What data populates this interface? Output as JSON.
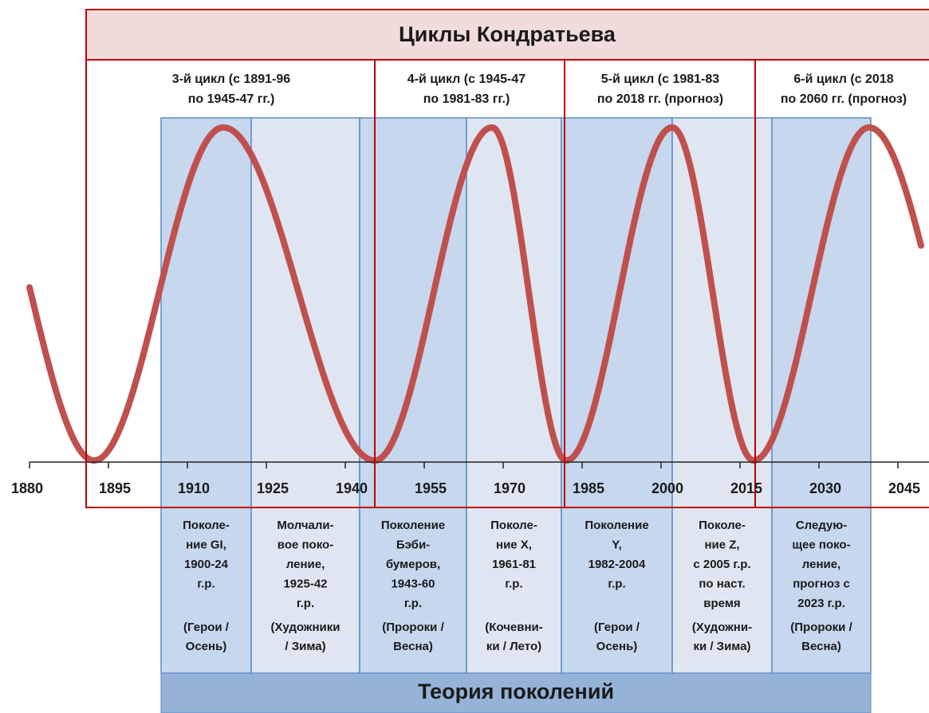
{
  "header": {
    "title": "Циклы Кондратьева"
  },
  "footer": {
    "title": "Теория поколений"
  },
  "cycles": [
    {
      "lines": [
        "3-й цикл (с 1891-96",
        "по 1945-47 гг.)"
      ]
    },
    {
      "lines": [
        "4-й цикл (с 1945-47",
        "по 1981-83 гг.)"
      ]
    },
    {
      "lines": [
        "5-й цикл (с 1981-83",
        "по 2018 гг. (прогноз)"
      ]
    },
    {
      "lines": [
        "6-й цикл (с 2018",
        "по 2060 гг. (прогноз)"
      ]
    }
  ],
  "years": [
    1880,
    1895,
    1910,
    1925,
    1940,
    1955,
    1970,
    1985,
    2000,
    2015,
    2030,
    2045
  ],
  "generations": [
    {
      "lines": [
        "Поколе-",
        "ние GI,",
        "1900-24",
        "г.р."
      ],
      "note": [
        "(Герои /",
        "Осень)"
      ]
    },
    {
      "lines": [
        "Молчали-",
        "вое поко-",
        "ление,",
        "1925-42",
        "г.р."
      ],
      "note": [
        "(Художники",
        "/ Зима)"
      ]
    },
    {
      "lines": [
        "Поколение",
        "Бэби-",
        "бумеров,",
        "1943-60",
        "г.р."
      ],
      "note": [
        "(Пророки /",
        "Весна)"
      ]
    },
    {
      "lines": [
        "Поколе-",
        "ние X,",
        "1961-81",
        "г.р."
      ],
      "note": [
        "(Кочевни-",
        "ки / Лето)"
      ]
    },
    {
      "lines": [
        "Поколение",
        "Y,",
        "1982-2004",
        "г.р."
      ],
      "note": [
        "(Герои /",
        "Осень)"
      ]
    },
    {
      "lines": [
        "Поколе-",
        "ние Z,",
        "с 2005 г.р.",
        "по наст.",
        "время"
      ],
      "note": [
        "(Художни-",
        "ки / Зима)"
      ]
    },
    {
      "lines": [
        "Следую-",
        "щее поко-",
        "ление,",
        "прогноз с",
        "2023 г.р."
      ],
      "note": [
        "(Пророки /",
        "Весна)"
      ]
    }
  ]
}
